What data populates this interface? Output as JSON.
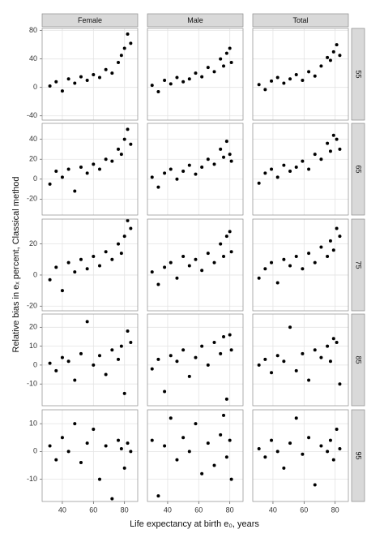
{
  "chart_data": {
    "type": "scatter",
    "x_label": "Life expectancy at birth e₀, years",
    "y_label": "Relative bias in eₓ percent, Classical method",
    "facet_columns": [
      "Female",
      "Male",
      "Total"
    ],
    "facet_rows": [
      "55",
      "65",
      "75",
      "85",
      "95"
    ],
    "color": "#000000",
    "grid": true,
    "xlim": [
      27,
      88.5
    ],
    "xticks": [
      40,
      60,
      80
    ],
    "row_axes": [
      {
        "ylim": [
          -46,
          83
        ],
        "yticks": [
          -40,
          0,
          40,
          80
        ]
      },
      {
        "ylim": [
          -36,
          56
        ],
        "yticks": [
          -20,
          0,
          20,
          40
        ]
      },
      {
        "ylim": [
          -23,
          36
        ],
        "yticks": [
          -20,
          0,
          20
        ]
      },
      {
        "ylim": [
          -21.5,
          27
        ],
        "yticks": [
          -10,
          0,
          10,
          20
        ]
      },
      {
        "ylim": [
          -18,
          15
        ],
        "yticks": [
          -10,
          0,
          10
        ]
      }
    ],
    "panels": [
      [
        {
          "x": [
            32,
            36,
            40,
            44,
            48,
            52,
            56,
            60,
            64,
            68,
            72,
            76,
            78,
            80,
            82,
            84
          ],
          "y": [
            2,
            8,
            -5,
            12,
            6,
            15,
            10,
            18,
            14,
            25,
            20,
            35,
            45,
            55,
            75,
            62
          ]
        },
        {
          "x": [
            30,
            34,
            38,
            42,
            46,
            50,
            54,
            58,
            62,
            66,
            70,
            74,
            76,
            78,
            80,
            81
          ],
          "y": [
            3,
            -6,
            10,
            5,
            14,
            8,
            12,
            20,
            15,
            28,
            22,
            40,
            30,
            48,
            55,
            35
          ]
        },
        {
          "x": [
            31,
            35,
            39,
            43,
            47,
            51,
            55,
            59,
            63,
            67,
            71,
            75,
            77,
            79,
            81,
            83
          ],
          "y": [
            4,
            -3,
            9,
            14,
            6,
            12,
            18,
            10,
            22,
            16,
            30,
            42,
            38,
            50,
            60,
            45
          ]
        }
      ],
      [
        {
          "x": [
            32,
            36,
            40,
            44,
            48,
            52,
            56,
            60,
            64,
            68,
            72,
            76,
            78,
            80,
            82,
            84
          ],
          "y": [
            -5,
            8,
            2,
            10,
            -12,
            12,
            6,
            15,
            10,
            20,
            18,
            30,
            25,
            40,
            50,
            35
          ]
        },
        {
          "x": [
            30,
            34,
            38,
            42,
            46,
            50,
            54,
            58,
            62,
            66,
            70,
            74,
            76,
            78,
            80,
            81
          ],
          "y": [
            2,
            -8,
            6,
            10,
            0,
            8,
            14,
            5,
            12,
            20,
            15,
            30,
            22,
            38,
            25,
            18
          ]
        },
        {
          "x": [
            31,
            35,
            39,
            43,
            47,
            51,
            55,
            59,
            63,
            67,
            71,
            75,
            77,
            79,
            81,
            83
          ],
          "y": [
            -4,
            6,
            10,
            2,
            14,
            8,
            12,
            18,
            10,
            25,
            20,
            36,
            28,
            44,
            40,
            30
          ]
        }
      ],
      [
        {
          "x": [
            32,
            36,
            40,
            44,
            48,
            52,
            56,
            60,
            64,
            68,
            72,
            76,
            78,
            80,
            82,
            84
          ],
          "y": [
            -3,
            5,
            -10,
            8,
            2,
            10,
            4,
            12,
            6,
            15,
            10,
            20,
            14,
            25,
            35,
            30
          ]
        },
        {
          "x": [
            30,
            34,
            38,
            42,
            46,
            50,
            54,
            58,
            62,
            66,
            70,
            74,
            76,
            78,
            80,
            81
          ],
          "y": [
            2,
            -6,
            5,
            8,
            -2,
            12,
            6,
            10,
            3,
            14,
            8,
            20,
            12,
            25,
            28,
            15
          ]
        },
        {
          "x": [
            31,
            35,
            39,
            43,
            47,
            51,
            55,
            59,
            63,
            67,
            71,
            75,
            77,
            79,
            81,
            83
          ],
          "y": [
            -2,
            4,
            8,
            -5,
            10,
            6,
            12,
            4,
            14,
            8,
            18,
            12,
            22,
            16,
            30,
            25
          ]
        }
      ],
      [
        {
          "x": [
            32,
            36,
            40,
            44,
            48,
            52,
            56,
            60,
            64,
            68,
            72,
            76,
            78,
            80,
            82,
            84
          ],
          "y": [
            1,
            -3,
            4,
            2,
            -8,
            6,
            23,
            0,
            5,
            -5,
            8,
            3,
            10,
            -15,
            18,
            12
          ]
        },
        {
          "x": [
            30,
            34,
            38,
            42,
            46,
            50,
            54,
            58,
            62,
            66,
            70,
            74,
            76,
            78,
            80,
            81
          ],
          "y": [
            -2,
            3,
            -14,
            5,
            2,
            8,
            -6,
            4,
            10,
            0,
            12,
            6,
            15,
            -18,
            16,
            8
          ]
        },
        {
          "x": [
            31,
            35,
            39,
            43,
            47,
            51,
            55,
            59,
            63,
            67,
            71,
            75,
            77,
            79,
            81,
            83
          ],
          "y": [
            0,
            3,
            -4,
            5,
            2,
            20,
            -3,
            6,
            -8,
            8,
            4,
            10,
            2,
            14,
            12,
            -10
          ]
        }
      ],
      [
        {
          "x": [
            32,
            36,
            40,
            44,
            48,
            52,
            56,
            60,
            64,
            68,
            72,
            76,
            78,
            80,
            82,
            84
          ],
          "y": [
            2,
            -3,
            5,
            0,
            10,
            -4,
            3,
            8,
            -10,
            2,
            -17,
            4,
            1,
            -6,
            3,
            0
          ]
        },
        {
          "x": [
            30,
            34,
            38,
            42,
            46,
            50,
            54,
            58,
            62,
            66,
            70,
            74,
            76,
            78,
            80,
            81
          ],
          "y": [
            4,
            -16,
            2,
            12,
            -3,
            5,
            0,
            10,
            -8,
            3,
            -5,
            6,
            13,
            -2,
            4,
            -10
          ]
        },
        {
          "x": [
            31,
            35,
            39,
            43,
            47,
            51,
            55,
            59,
            63,
            67,
            71,
            75,
            77,
            79,
            81,
            83
          ],
          "y": [
            1,
            -2,
            4,
            0,
            -6,
            3,
            12,
            -1,
            5,
            -12,
            2,
            0,
            4,
            -3,
            8,
            1
          ]
        }
      ]
    ]
  }
}
